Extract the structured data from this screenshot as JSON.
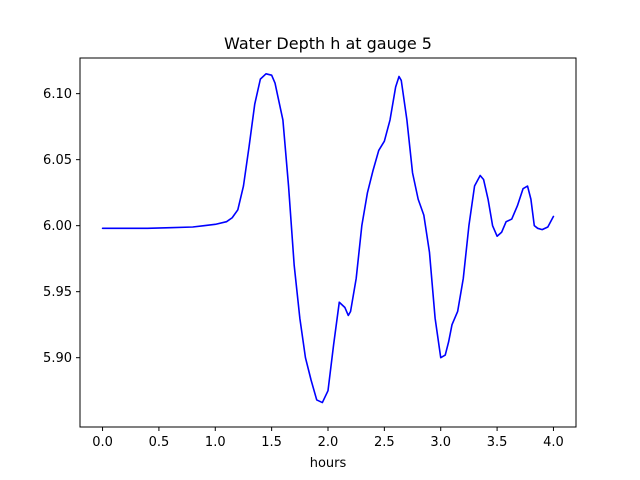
{
  "chart_data": {
    "type": "line",
    "title": "Water Depth h at gauge 5",
    "xlabel": "hours",
    "ylabel": "",
    "xlim": [
      -0.2,
      4.2
    ],
    "ylim": [
      5.8475,
      6.127
    ],
    "xticks": [
      0.0,
      0.5,
      1.0,
      1.5,
      2.0,
      2.5,
      3.0,
      3.5,
      4.0
    ],
    "xtick_labels": [
      "0.0",
      "0.5",
      "1.0",
      "1.5",
      "2.0",
      "2.5",
      "3.0",
      "3.5",
      "4.0"
    ],
    "yticks": [
      5.9,
      5.95,
      6.0,
      6.05,
      6.1
    ],
    "ytick_labels": [
      "5.90",
      "5.95",
      "6.00",
      "6.05",
      "6.10"
    ],
    "grid": false,
    "legend": "none",
    "series": [
      {
        "color": "#0000ff",
        "x": [
          0.0,
          0.2,
          0.4,
          0.6,
          0.8,
          0.9,
          1.0,
          1.1,
          1.15,
          1.2,
          1.25,
          1.3,
          1.35,
          1.4,
          1.45,
          1.5,
          1.53,
          1.55,
          1.6,
          1.65,
          1.7,
          1.75,
          1.8,
          1.85,
          1.9,
          1.95,
          2.0,
          2.05,
          2.1,
          2.15,
          2.18,
          2.2,
          2.25,
          2.3,
          2.35,
          2.4,
          2.45,
          2.5,
          2.55,
          2.6,
          2.63,
          2.65,
          2.7,
          2.75,
          2.8,
          2.85,
          2.9,
          2.95,
          3.0,
          3.04,
          3.07,
          3.1,
          3.15,
          3.2,
          3.25,
          3.3,
          3.35,
          3.38,
          3.42,
          3.46,
          3.5,
          3.54,
          3.58,
          3.63,
          3.68,
          3.73,
          3.77,
          3.8,
          3.83,
          3.86,
          3.9,
          3.95,
          4.0
        ],
        "y": [
          5.998,
          5.998,
          5.998,
          5.9985,
          5.999,
          6.0,
          6.001,
          6.003,
          6.006,
          6.012,
          6.03,
          6.06,
          6.092,
          6.111,
          6.115,
          6.114,
          6.108,
          6.1,
          6.08,
          6.03,
          5.97,
          5.93,
          5.9,
          5.883,
          5.868,
          5.866,
          5.875,
          5.91,
          5.942,
          5.938,
          5.932,
          5.935,
          5.96,
          6.0,
          6.025,
          6.042,
          6.057,
          6.064,
          6.08,
          6.105,
          6.113,
          6.11,
          6.08,
          6.04,
          6.02,
          6.008,
          5.98,
          5.93,
          5.9,
          5.902,
          5.912,
          5.925,
          5.935,
          5.96,
          6.0,
          6.03,
          6.038,
          6.035,
          6.02,
          6.0,
          5.992,
          5.995,
          6.003,
          6.005,
          6.015,
          6.028,
          6.03,
          6.02,
          6.0,
          5.998,
          5.997,
          5.999,
          6.007
        ]
      }
    ]
  }
}
